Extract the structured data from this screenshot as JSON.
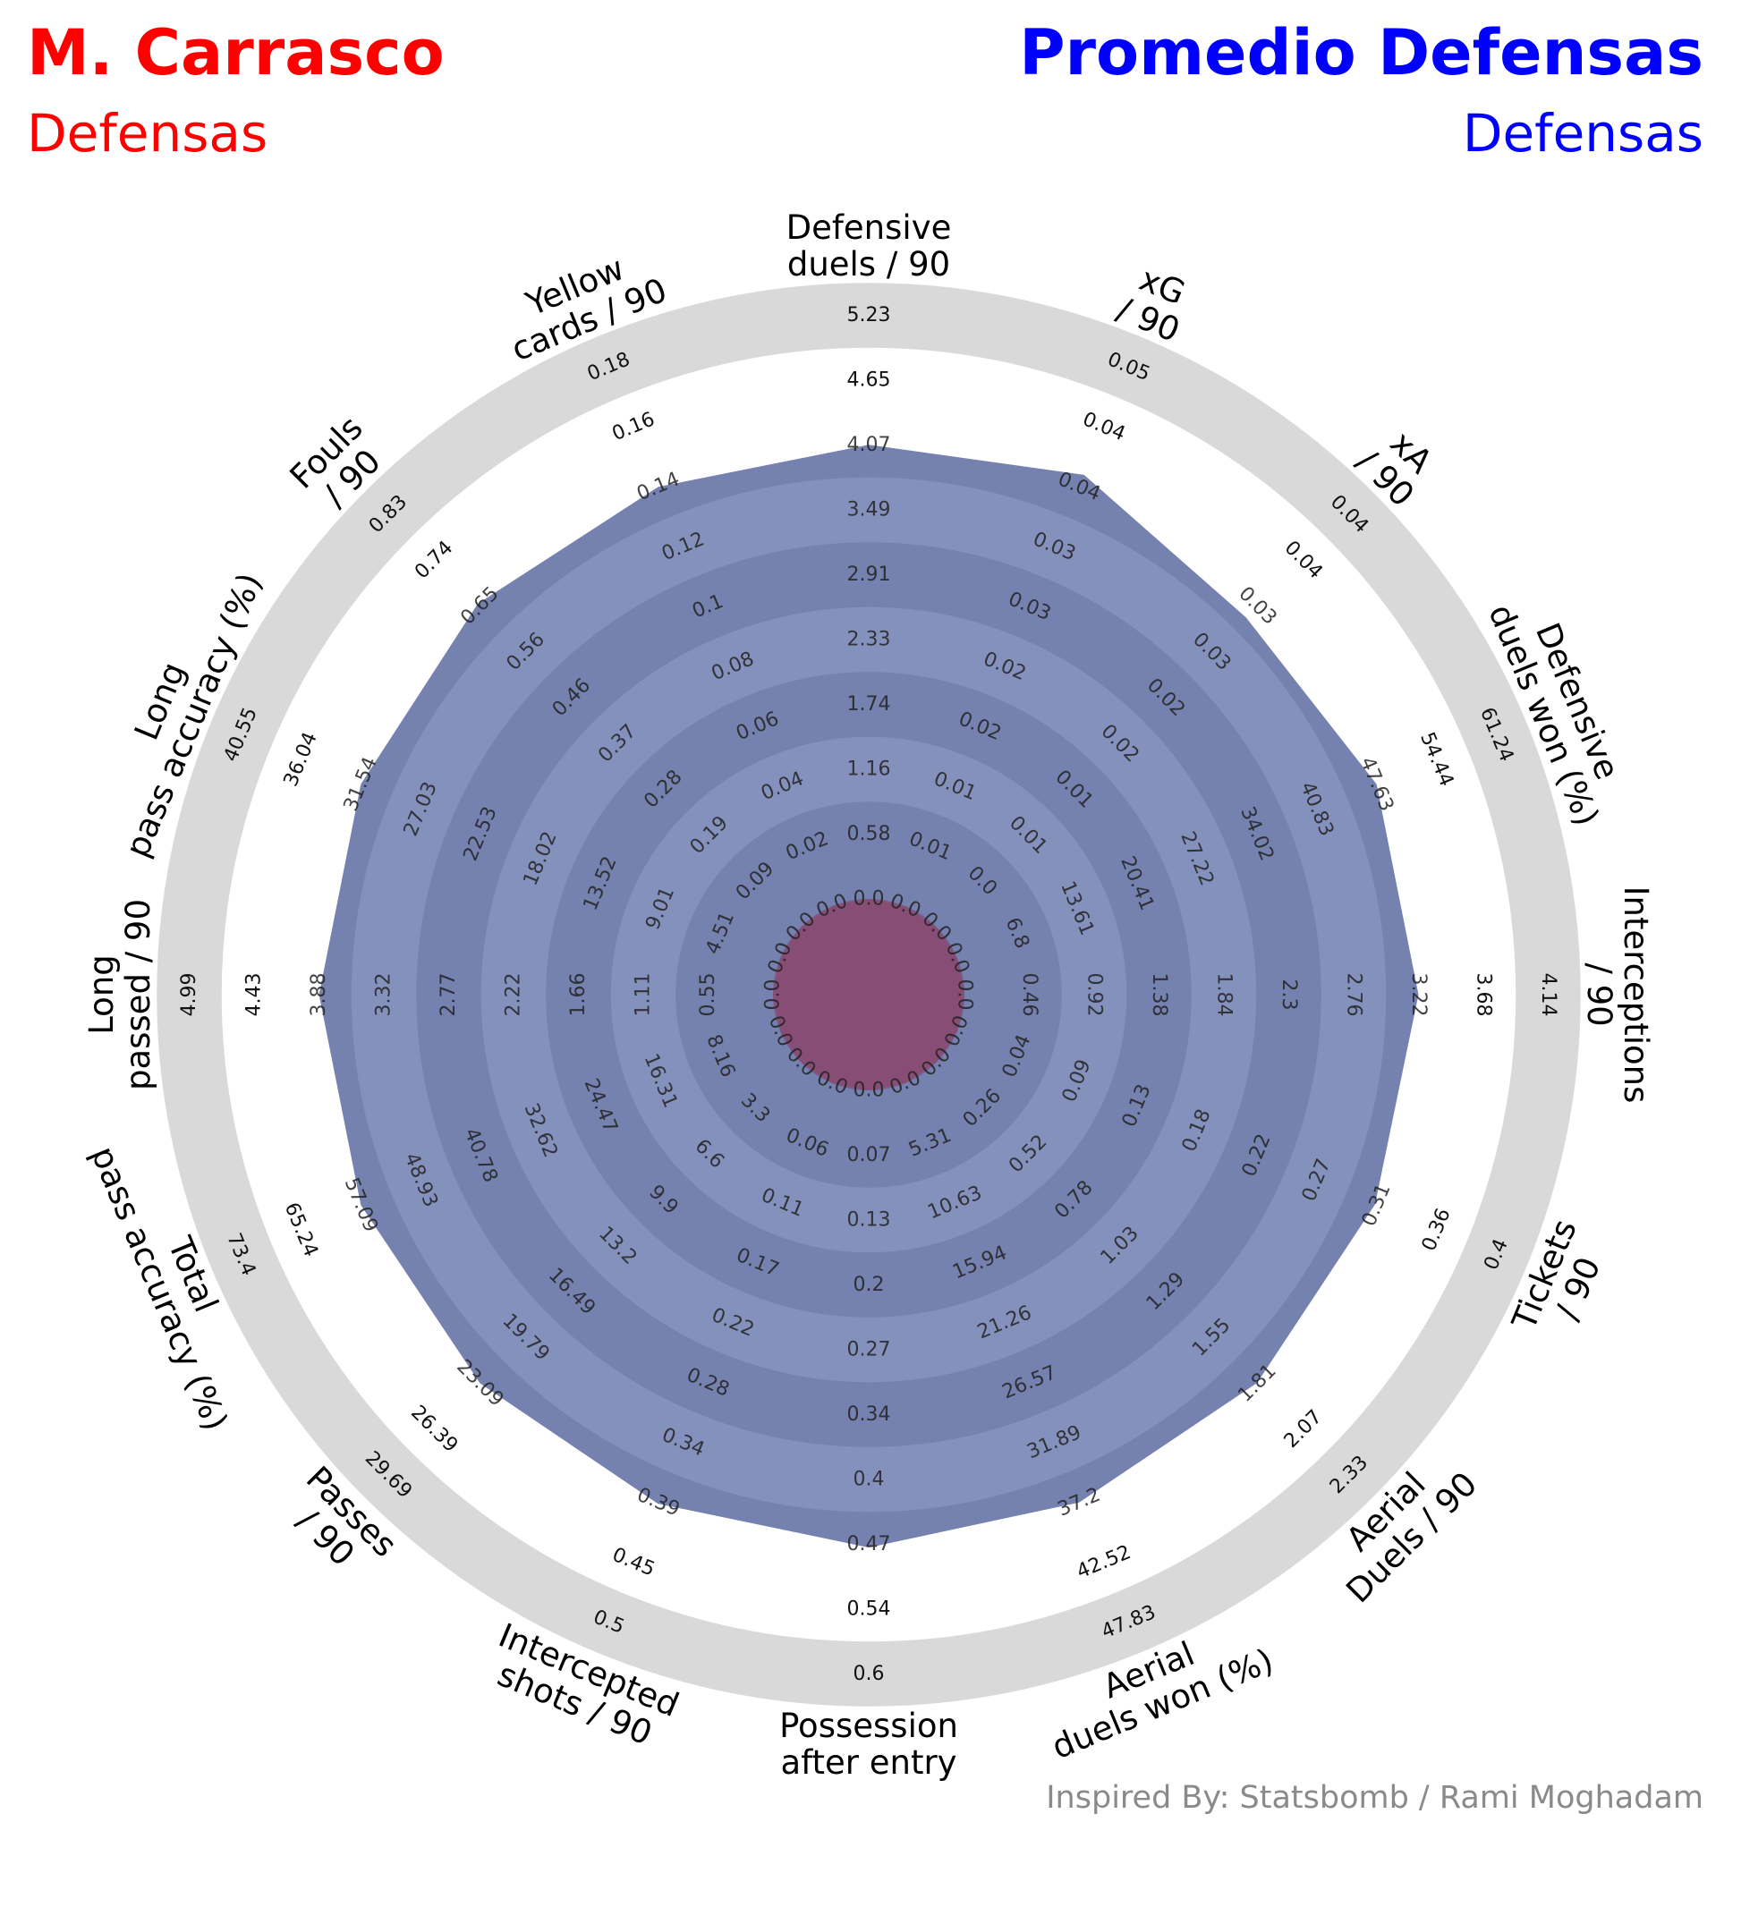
{
  "header": {
    "player1_name": "M. Carrasco",
    "player1_position": "Defensas",
    "player2_name": "Promedio Defensas",
    "player2_position": "Defensas",
    "credit": "Inspired By: Statsbomb / Rami Moghadam"
  },
  "colors": {
    "player1": "#ff0000",
    "player2": "#0000ff",
    "ring_dark": "#7581ae",
    "ring_light": "#8591bd",
    "outer_ring": "#d9d9d9",
    "player1_fill": "#b0243c",
    "player2_fill": "#4a5a9e"
  },
  "chart_data": {
    "type": "radar",
    "params": [
      "Defensive\nduels / 90",
      "xG\n/ 90",
      "xA\n/ 90",
      "Defensive\nduels won (%)",
      "Interceptions\n/ 90",
      "Tickets\n/ 90",
      "Aerial\nDuels / 90",
      "Aerial\nduels won (%)",
      "Possession\nafter entry",
      "Intercepted\nshots / 90",
      "Passes\n/ 90",
      "Total\npass accuracy (%)",
      "Long\npassed / 90",
      "Long\npass accuracy (%)",
      "Fouls\n/ 90",
      "Yellow\ncards / 90"
    ],
    "ring_labels": [
      [
        "0.0",
        "0.58",
        "1.16",
        "1.74",
        "2.33",
        "2.91",
        "3.49",
        "4.07",
        "4.65",
        "5.23"
      ],
      [
        "0.0",
        "0.01",
        "0.01",
        "0.02",
        "0.02",
        "0.03",
        "0.03",
        "0.04",
        "0.04",
        "0.05"
      ],
      [
        "0.0",
        "0.0",
        "0.01",
        "0.01",
        "0.02",
        "0.02",
        "0.03",
        "0.03",
        "0.04",
        "0.04"
      ],
      [
        "0.0",
        "6.8",
        "13.61",
        "20.41",
        "27.22",
        "34.02",
        "40.83",
        "47.63",
        "54.44",
        "61.24"
      ],
      [
        "0.0",
        "0.46",
        "0.92",
        "1.38",
        "1.84",
        "2.3",
        "2.76",
        "3.22",
        "3.68",
        "4.14"
      ],
      [
        "0.0",
        "0.04",
        "0.09",
        "0.13",
        "0.18",
        "0.22",
        "0.27",
        "0.31",
        "0.36",
        "0.4"
      ],
      [
        "0.0",
        "0.26",
        "0.52",
        "0.78",
        "1.03",
        "1.29",
        "1.55",
        "1.81",
        "2.07",
        "2.33"
      ],
      [
        "0.0",
        "5.31",
        "10.63",
        "15.94",
        "21.26",
        "26.57",
        "31.89",
        "37.2",
        "42.52",
        "47.83"
      ],
      [
        "0.0",
        "0.07",
        "0.13",
        "0.2",
        "0.27",
        "0.34",
        "0.4",
        "0.47",
        "0.54",
        "0.6"
      ],
      [
        "0.0",
        "0.06",
        "0.11",
        "0.17",
        "0.22",
        "0.28",
        "0.34",
        "0.39",
        "0.45",
        "0.5"
      ],
      [
        "0.0",
        "3.3",
        "6.6",
        "9.9",
        "13.2",
        "16.49",
        "19.79",
        "23.09",
        "26.39",
        "29.69"
      ],
      [
        "0.0",
        "8.16",
        "16.31",
        "24.47",
        "32.62",
        "40.78",
        "48.93",
        "57.09",
        "65.24",
        "73.4"
      ],
      [
        "0.0",
        "0.55",
        "1.11",
        "1.66",
        "2.22",
        "2.77",
        "3.32",
        "3.88",
        "4.43",
        "4.99"
      ],
      [
        "0.0",
        "4.51",
        "9.01",
        "13.52",
        "18.02",
        "22.53",
        "27.03",
        "31.54",
        "36.04",
        "40.55"
      ],
      [
        "0.0",
        "0.09",
        "0.19",
        "0.28",
        "0.37",
        "0.46",
        "0.56",
        "0.65",
        "0.74",
        "0.83"
      ],
      [
        "0.0",
        "0.02",
        "0.04",
        "0.06",
        "0.08",
        "0.1",
        "0.12",
        "0.14",
        "0.16",
        "0.18"
      ]
    ],
    "series": [
      {
        "name": "M. Carrasco",
        "values": [
          0,
          0,
          0,
          0,
          0,
          0,
          0,
          0,
          0,
          0,
          0,
          0,
          0,
          0,
          0,
          0
        ]
      },
      {
        "name": "Promedio Defensas",
        "values": [
          4.07,
          0.04,
          0.03,
          47.63,
          3.22,
          0.31,
          1.81,
          37.2,
          0.47,
          0.39,
          23.09,
          57.09,
          3.88,
          31.54,
          0.65,
          0.14
        ]
      }
    ],
    "ranges": [
      [
        0,
        5.23
      ],
      [
        0,
        0.05
      ],
      [
        0,
        0.04
      ],
      [
        0,
        61.24
      ],
      [
        0,
        4.14
      ],
      [
        0,
        0.4
      ],
      [
        0,
        2.33
      ],
      [
        0,
        47.83
      ],
      [
        0,
        0.6
      ],
      [
        0,
        0.5
      ],
      [
        0,
        29.69
      ],
      [
        0,
        73.4
      ],
      [
        0,
        4.99
      ],
      [
        0,
        40.55
      ],
      [
        0,
        0.83
      ],
      [
        0,
        0.18
      ]
    ]
  }
}
